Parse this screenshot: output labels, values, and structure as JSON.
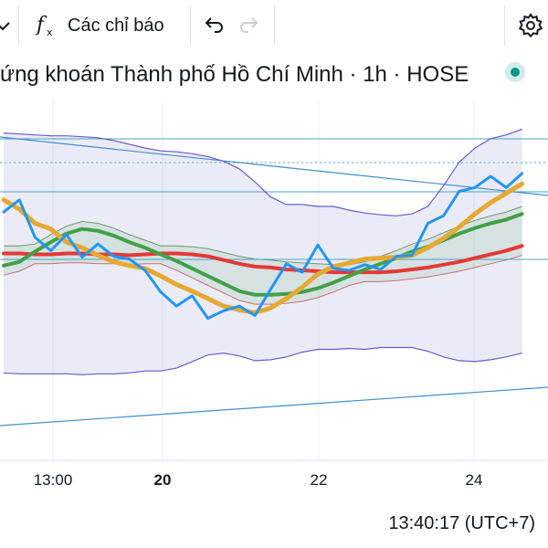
{
  "toolbar": {
    "indicators_label": "Các chỉ báo",
    "icons": [
      "chevron-down-icon",
      "fx-icon",
      "undo-icon",
      "redo-icon",
      "gear-icon"
    ]
  },
  "header": {
    "title": "ứng khoán Thành phố Hồ Chí Minh · 1h · HOSE",
    "status_color": "#089981"
  },
  "chart_data": {
    "type": "line",
    "x_ticks": [
      {
        "label": "13:00",
        "bold": false
      },
      {
        "label": "20",
        "bold": true
      },
      {
        "label": "22",
        "bold": false
      },
      {
        "label": "24",
        "bold": false
      }
    ],
    "series": [
      {
        "color": "#2196f3",
        "values": [
          0.62,
          0.75,
          0.35,
          0.21,
          0.38,
          0.14,
          0.28,
          0.15,
          0.12,
          0.0,
          -0.23,
          -0.38,
          -0.27,
          -0.51,
          -0.43,
          -0.38,
          -0.48,
          -0.2,
          0.07,
          -0.02,
          0.27,
          0.02,
          0.0,
          0.06,
          0.01,
          0.15,
          0.16,
          0.5,
          0.58,
          0.84,
          0.88,
          1.0,
          0.88,
          1.03
        ]
      },
      {
        "color": "#e5a933",
        "values": [
          0.75,
          0.65,
          0.5,
          0.44,
          0.3,
          0.24,
          0.16,
          0.09,
          0.05,
          0.02,
          -0.06,
          -0.15,
          -0.22,
          -0.3,
          -0.38,
          -0.42,
          -0.45,
          -0.4,
          -0.3,
          -0.18,
          -0.04,
          0.04,
          0.08,
          0.12,
          0.13,
          0.14,
          0.16,
          0.24,
          0.34,
          0.46,
          0.6,
          0.72,
          0.82,
          0.92
        ]
      },
      {
        "color": "#43a047",
        "values": [
          0.05,
          0.09,
          0.2,
          0.3,
          0.39,
          0.44,
          0.42,
          0.37,
          0.3,
          0.24,
          0.17,
          0.1,
          0.02,
          -0.06,
          -0.14,
          -0.22,
          -0.26,
          -0.26,
          -0.25,
          -0.23,
          -0.19,
          -0.13,
          -0.06,
          0.01,
          0.07,
          0.13,
          0.2,
          0.25,
          0.32,
          0.39,
          0.45,
          0.5,
          0.54,
          0.6
        ]
      },
      {
        "color": "#e53935",
        "values": [
          0.18,
          0.18,
          0.17,
          0.17,
          0.18,
          0.18,
          0.17,
          0.17,
          0.16,
          0.17,
          0.18,
          0.18,
          0.17,
          0.15,
          0.11,
          0.07,
          0.04,
          0.03,
          0.01,
          0.0,
          -0.01,
          -0.02,
          -0.02,
          -0.02,
          -0.02,
          -0.01,
          0.01,
          0.03,
          0.06,
          0.09,
          0.13,
          0.17,
          0.21,
          0.26
        ]
      },
      {
        "color": "#6a5acd",
        "values": [
          1.46,
          1.45,
          1.44,
          1.43,
          1.43,
          1.42,
          1.41,
          1.38,
          1.34,
          1.3,
          1.27,
          1.26,
          1.24,
          1.21,
          1.16,
          1.08,
          0.94,
          0.78,
          0.7,
          0.7,
          0.68,
          0.68,
          0.64,
          0.61,
          0.59,
          0.58,
          0.6,
          0.68,
          0.9,
          1.15,
          1.3,
          1.4,
          1.44,
          1.5
        ]
      },
      {
        "color": "#6a5acd",
        "values": [
          -1.09,
          -1.1,
          -1.1,
          -1.1,
          -1.1,
          -1.11,
          -1.1,
          -1.1,
          -1.09,
          -1.07,
          -1.07,
          -1.04,
          -0.97,
          -0.9,
          -0.88,
          -0.91,
          -0.96,
          -0.95,
          -0.92,
          -0.87,
          -0.84,
          -0.84,
          -0.83,
          -0.84,
          -0.82,
          -0.82,
          -0.82,
          -0.86,
          -0.92,
          -0.96,
          -0.97,
          -0.95,
          -0.92,
          -0.88
        ]
      }
    ]
  },
  "time_axis": {
    "clock": "13:40:17 (UTC+7)"
  }
}
